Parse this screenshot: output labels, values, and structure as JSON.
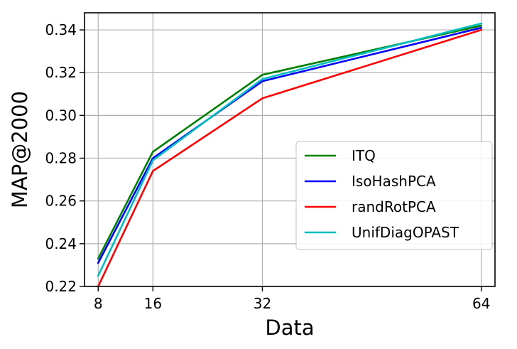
{
  "chart_data": {
    "type": "line",
    "xlabel": "Data",
    "ylabel": "MAP@2000",
    "x": [
      8,
      16,
      32,
      64
    ],
    "xticks": [
      8,
      16,
      32,
      64
    ],
    "xlim": [
      6,
      66
    ],
    "ylim": [
      0.22,
      0.348
    ],
    "yticks": [
      0.22,
      0.24,
      0.26,
      0.28,
      0.3,
      0.32,
      0.34
    ],
    "ytick_labels": [
      "0.22",
      "0.24",
      "0.26",
      "0.28",
      "0.30",
      "0.32",
      "0.34"
    ],
    "grid": true,
    "legend_position": "center-right",
    "series": [
      {
        "name": "ITQ",
        "color": "#008000",
        "values": [
          0.233,
          0.283,
          0.319,
          0.342
        ]
      },
      {
        "name": "IsoHashPCA",
        "color": "#0000ff",
        "values": [
          0.231,
          0.28,
          0.316,
          0.341
        ]
      },
      {
        "name": "randRotPCA",
        "color": "#ff0000",
        "values": [
          0.22,
          0.274,
          0.308,
          0.34
        ]
      },
      {
        "name": "UnifDiagOPAST",
        "color": "#00bfbf",
        "values": [
          0.225,
          0.279,
          0.317,
          0.343
        ]
      }
    ]
  }
}
